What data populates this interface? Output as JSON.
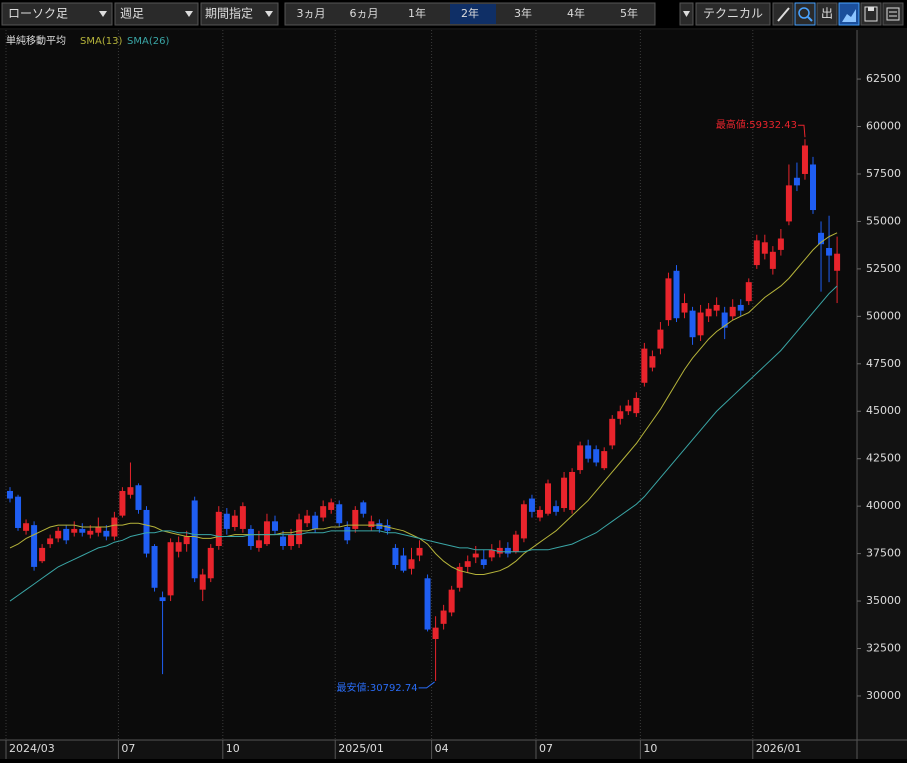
{
  "toolbar": {
    "chart_style": "ローソク足",
    "interval": "週足",
    "period_mode": "期間指定",
    "ranges": [
      "3ヵ月",
      "6ヵ月",
      "1年",
      "2年",
      "3年",
      "4年",
      "5年"
    ],
    "selected_range": "2年",
    "technical": "テクニカル",
    "icon_out": "出"
  },
  "indicator": {
    "name": "単純移動平均"
  },
  "chart_data": {
    "type": "candlestick",
    "categories": [
      "2024/03",
      null,
      null,
      null,
      null,
      null,
      null,
      null,
      null,
      null,
      null,
      null,
      null,
      null,
      "07",
      null,
      null,
      null,
      null,
      null,
      null,
      null,
      null,
      null,
      null,
      null,
      null,
      "10",
      null,
      null,
      null,
      null,
      null,
      null,
      null,
      null,
      null,
      null,
      null,
      null,
      null,
      "2025/01",
      null,
      null,
      null,
      null,
      null,
      null,
      null,
      null,
      null,
      null,
      null,
      "04",
      null,
      null,
      null,
      null,
      null,
      null,
      null,
      null,
      null,
      null,
      null,
      null,
      "07",
      null,
      null,
      null,
      null,
      null,
      null,
      null,
      null,
      null,
      null,
      null,
      null,
      "10",
      null,
      null,
      null,
      null,
      null,
      null,
      null,
      null,
      null,
      null,
      null,
      null,
      null,
      "2026/01",
      null,
      null,
      null,
      null,
      null,
      null,
      null,
      null,
      null,
      null
    ],
    "open": [
      40800,
      40500,
      38700,
      39000,
      37100,
      38000,
      38300,
      38800,
      38600,
      38800,
      38500,
      38600,
      38700,
      38400,
      39500,
      40600,
      41100,
      39800,
      37900,
      35200,
      35300,
      37600,
      38000,
      40300,
      35600,
      36200,
      37900,
      39600,
      38900,
      38800,
      38800,
      37800,
      38000,
      39200,
      38400,
      37900,
      38000,
      39100,
      39500,
      39400,
      39800,
      40100,
      38900,
      38800,
      40200,
      38900,
      39100,
      39000,
      37800,
      37400,
      36700,
      37400,
      36200,
      33000,
      33800,
      34400,
      35700,
      36800,
      37300,
      37200,
      37300,
      37500,
      37800,
      37600,
      38300,
      40400,
      39400,
      39600,
      40000,
      39900,
      39800,
      41900,
      43200,
      43000,
      42000,
      43200,
      44600,
      45000,
      44900,
      46500,
      47300,
      48300,
      49800,
      52400,
      50200,
      50300,
      49000,
      50000,
      50300,
      50200,
      50000,
      50600,
      50800,
      52700,
      53300,
      52500,
      53500,
      55000,
      57300,
      57500,
      58000,
      54400,
      53600,
      52400
    ],
    "high": [
      41000,
      40600,
      39300,
      39200,
      38000,
      38500,
      38900,
      39000,
      39200,
      39100,
      39000,
      39400,
      39000,
      39700,
      41000,
      42300,
      41200,
      40000,
      38000,
      35500,
      38300,
      38400,
      38700,
      40500,
      36700,
      38000,
      40000,
      39900,
      39800,
      40200,
      39000,
      38700,
      39600,
      39500,
      38700,
      38800,
      39600,
      39800,
      39700,
      40300,
      40400,
      40300,
      39200,
      40000,
      40300,
      39500,
      39300,
      39300,
      38000,
      37800,
      37800,
      38200,
      36400,
      34200,
      34800,
      35800,
      37000,
      37400,
      37900,
      37700,
      38000,
      38200,
      38100,
      38700,
      40300,
      40600,
      40000,
      41400,
      40300,
      41800,
      42000,
      43400,
      43500,
      43200,
      43100,
      44800,
      45300,
      45600,
      46000,
      48600,
      48200,
      49700,
      52300,
      52700,
      51200,
      50500,
      50600,
      50700,
      51000,
      50500,
      50900,
      50900,
      52000,
      54300,
      54300,
      53700,
      54600,
      58000,
      58100,
      59332.43,
      58400,
      55000,
      55300,
      54200
    ],
    "low": [
      40200,
      38700,
      38500,
      36600,
      37000,
      37800,
      38100,
      38000,
      38400,
      38400,
      38300,
      38400,
      38200,
      38200,
      39400,
      40400,
      39600,
      37300,
      35500,
      31150,
      35000,
      37300,
      37600,
      36000,
      35000,
      36000,
      37700,
      38500,
      38700,
      38600,
      37700,
      37600,
      37900,
      38500,
      37700,
      37700,
      37800,
      38900,
      38600,
      39200,
      39600,
      38900,
      38000,
      38600,
      39400,
      38700,
      38600,
      38500,
      36700,
      36500,
      36400,
      37100,
      33400,
      30792.74,
      33500,
      34200,
      35500,
      36500,
      37000,
      36700,
      37100,
      37300,
      37300,
      37500,
      38100,
      39400,
      39200,
      39500,
      39500,
      39700,
      39600,
      41700,
      42300,
      42100,
      41900,
      43000,
      44300,
      44800,
      44700,
      46300,
      47100,
      48000,
      49500,
      49700,
      49900,
      48500,
      48700,
      49700,
      50000,
      48800,
      49800,
      50000,
      50600,
      52500,
      53000,
      52200,
      53200,
      54800,
      56600,
      57200,
      55400,
      51300,
      51800,
      50700
    ],
    "close": [
      40400,
      38850,
      39100,
      36800,
      37800,
      38300,
      38700,
      38200,
      38800,
      38600,
      38700,
      38900,
      38400,
      39400,
      40800,
      41000,
      39800,
      37500,
      35700,
      35000,
      38100,
      38100,
      38400,
      36200,
      36400,
      37800,
      39700,
      38800,
      39500,
      40000,
      37900,
      38200,
      39200,
      38700,
      37900,
      38500,
      39300,
      39500,
      38800,
      40000,
      40200,
      39100,
      38200,
      39800,
      39600,
      39200,
      38800,
      38700,
      36900,
      36600,
      37200,
      37800,
      33500,
      33600,
      34500,
      35600,
      36800,
      37100,
      37500,
      36900,
      37700,
      37800,
      37500,
      38500,
      40100,
      39700,
      39800,
      41200,
      39700,
      41500,
      41800,
      43200,
      42500,
      42300,
      42900,
      44600,
      45000,
      45300,
      45700,
      48300,
      47900,
      49300,
      52000,
      49900,
      50700,
      48900,
      50200,
      50400,
      50600,
      49400,
      50500,
      50300,
      51800,
      54000,
      53900,
      53400,
      54100,
      56900,
      56900,
      59000,
      55600,
      53800,
      53200,
      53300
    ],
    "up_color": "#e8242c",
    "down_color": "#1f5ef2",
    "series": [
      {
        "name": "SMA(13)",
        "color": "#b5b33a",
        "values": [
          37800,
          38000,
          38300,
          38500,
          38700,
          38900,
          39000,
          39000,
          39000,
          38900,
          38900,
          38900,
          38900,
          39000,
          39000,
          39100,
          39100,
          39000,
          38900,
          38700,
          38600,
          38500,
          38400,
          38400,
          38300,
          38300,
          38400,
          38400,
          38500,
          38500,
          38500,
          38500,
          38500,
          38500,
          38600,
          38600,
          38700,
          38700,
          38800,
          38800,
          38900,
          38900,
          39000,
          39000,
          39000,
          39000,
          39000,
          38900,
          38800,
          38700,
          38500,
          38300,
          38000,
          37500,
          37100,
          36800,
          36600,
          36500,
          36400,
          36400,
          36500,
          36600,
          36800,
          37100,
          37500,
          37800,
          38100,
          38400,
          38700,
          39100,
          39500,
          39900,
          40300,
          40800,
          41300,
          41800,
          42300,
          42800,
          43300,
          43900,
          44500,
          45100,
          45800,
          46500,
          47200,
          47800,
          48300,
          48800,
          49200,
          49500,
          49800,
          50000,
          50200,
          50600,
          51000,
          51300,
          51600,
          52000,
          52500,
          53000,
          53500,
          53900,
          54200,
          54400
        ]
      },
      {
        "name": "SMA(26)",
        "color": "#3aa6a6",
        "values": [
          35000,
          35300,
          35600,
          35900,
          36200,
          36500,
          36800,
          37000,
          37200,
          37400,
          37600,
          37800,
          37900,
          38100,
          38200,
          38400,
          38500,
          38600,
          38600,
          38700,
          38700,
          38600,
          38600,
          38500,
          38500,
          38500,
          38400,
          38400,
          38400,
          38400,
          38500,
          38500,
          38500,
          38500,
          38500,
          38500,
          38500,
          38600,
          38600,
          38600,
          38700,
          38700,
          38700,
          38700,
          38700,
          38700,
          38700,
          38600,
          38600,
          38500,
          38400,
          38300,
          38200,
          38100,
          38000,
          37900,
          37800,
          37800,
          37700,
          37700,
          37700,
          37600,
          37600,
          37600,
          37600,
          37700,
          37700,
          37700,
          37800,
          37900,
          38000,
          38200,
          38400,
          38600,
          38900,
          39200,
          39500,
          39800,
          40100,
          40500,
          41000,
          41500,
          42000,
          42500,
          43000,
          43500,
          44000,
          44500,
          45000,
          45400,
          45800,
          46200,
          46600,
          47000,
          47400,
          47800,
          48200,
          48700,
          49200,
          49700,
          50200,
          50700,
          51200,
          51600
        ]
      }
    ],
    "annotations": [
      {
        "text": "最高値:59332.43",
        "color": "#e8242c"
      },
      {
        "text": "最安値:30792.74",
        "color": "#2a6cf5"
      }
    ],
    "ylim": [
      27680,
      65085
    ],
    "yticks": [
      30000,
      32500,
      35000,
      37500,
      40000,
      42500,
      45000,
      47500,
      50000,
      52500,
      55000,
      57500,
      60000,
      62500
    ]
  }
}
